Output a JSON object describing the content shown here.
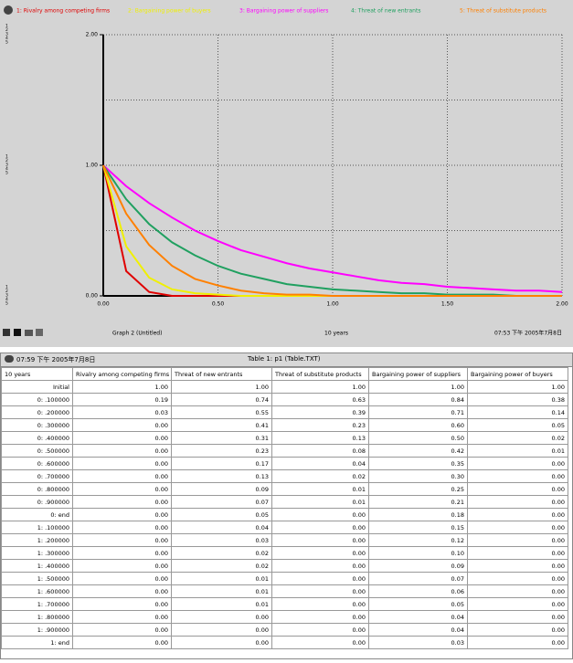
{
  "chart_data": {
    "type": "line",
    "legend": [
      "1: Rivalry among competing firms",
      "2: Bargaining power of buyers",
      "3: Bargaining power of suppliers",
      "4: Threat of new entrants",
      "5: Threat of substitute products"
    ],
    "axis_markers": [
      "1",
      "2",
      "3",
      "4",
      "5"
    ],
    "x": [
      0,
      0.1,
      0.2,
      0.3,
      0.4,
      0.5,
      0.6,
      0.7,
      0.8,
      0.9,
      1.0,
      1.1,
      1.2,
      1.3,
      1.4,
      1.5,
      1.6,
      1.7,
      1.8,
      1.9,
      2.0
    ],
    "series": [
      {
        "name": "1: Rivalry among competing firms",
        "color": "#e00000",
        "values": [
          1.0,
          0.19,
          0.03,
          0,
          0,
          0,
          0,
          0,
          0,
          0,
          0,
          0,
          0,
          0,
          0,
          0,
          0,
          0,
          0,
          0,
          0
        ]
      },
      {
        "name": "2: Bargaining power of buyers",
        "color": "#f0f000",
        "values": [
          1.0,
          0.38,
          0.14,
          0.05,
          0.02,
          0.01,
          0,
          0,
          0,
          0,
          0,
          0,
          0,
          0,
          0,
          0,
          0,
          0,
          0,
          0,
          0
        ]
      },
      {
        "name": "3: Bargaining power of suppliers",
        "color": "#ff00ff",
        "values": [
          1.0,
          0.84,
          0.71,
          0.6,
          0.5,
          0.42,
          0.35,
          0.3,
          0.25,
          0.21,
          0.18,
          0.15,
          0.12,
          0.1,
          0.09,
          0.07,
          0.06,
          0.05,
          0.04,
          0.04,
          0.03
        ]
      },
      {
        "name": "4: Threat of new entrants",
        "color": "#20a060",
        "values": [
          1.0,
          0.74,
          0.55,
          0.41,
          0.31,
          0.23,
          0.17,
          0.13,
          0.09,
          0.07,
          0.05,
          0.04,
          0.03,
          0.02,
          0.02,
          0.01,
          0.01,
          0.01,
          0,
          0,
          0
        ]
      },
      {
        "name": "5: Threat of substitute products",
        "color": "#ff8000",
        "values": [
          1.0,
          0.63,
          0.39,
          0.23,
          0.13,
          0.08,
          0.04,
          0.02,
          0.01,
          0.01,
          0,
          0,
          0,
          0,
          0,
          0,
          0,
          0,
          0,
          0,
          0
        ]
      }
    ],
    "xlim": [
      0,
      2
    ],
    "ylim": [
      0,
      2
    ],
    "xticks": [
      {
        "value": 0,
        "label": "0.00"
      },
      {
        "value": 0.5,
        "label": "0.50"
      },
      {
        "value": 1,
        "label": "1.00"
      },
      {
        "value": 1.5,
        "label": "1.50"
      },
      {
        "value": 2,
        "label": "2.00"
      }
    ],
    "yticks": [
      {
        "value": 0,
        "label": "0.00"
      },
      {
        "value": 1,
        "label": "1.00"
      },
      {
        "value": 2,
        "label": "2.00"
      }
    ],
    "ygrid": [
      0.5,
      1,
      1.5
    ],
    "graph_name": "Graph 2 (Untitled)",
    "xlabel": "10  years",
    "timestamp": "07:53 下午   2005年7月8日"
  },
  "table": {
    "timestamp": "07:59 下午   2005年7月8日",
    "title": "Table 1: p1 (Table.TXT)",
    "columns": [
      "10  years",
      "Rivalry among competing firms",
      "Threat of new entrants",
      "Threat of substitute products",
      "Bargaining power of suppliers",
      "Bargaining power of buyers"
    ],
    "rows": [
      [
        "Initial",
        "1.00",
        "1.00",
        "1.00",
        "1.00",
        "1.00"
      ],
      [
        "0: .100000",
        "0.19",
        "0.74",
        "0.63",
        "0.84",
        "0.38"
      ],
      [
        "0: .200000",
        "0.03",
        "0.55",
        "0.39",
        "0.71",
        "0.14"
      ],
      [
        "0: .300000",
        "0.00",
        "0.41",
        "0.23",
        "0.60",
        "0.05"
      ],
      [
        "0: .400000",
        "0.00",
        "0.31",
        "0.13",
        "0.50",
        "0.02"
      ],
      [
        "0: .500000",
        "0.00",
        "0.23",
        "0.08",
        "0.42",
        "0.01"
      ],
      [
        "0: .600000",
        "0.00",
        "0.17",
        "0.04",
        "0.35",
        "0.00"
      ],
      [
        "0: .700000",
        "0.00",
        "0.13",
        "0.02",
        "0.30",
        "0.00"
      ],
      [
        "0: .800000",
        "0.00",
        "0.09",
        "0.01",
        "0.25",
        "0.00"
      ],
      [
        "0: .900000",
        "0.00",
        "0.07",
        "0.01",
        "0.21",
        "0.00"
      ],
      [
        "0: end",
        "0.00",
        "0.05",
        "0.00",
        "0.18",
        "0.00"
      ],
      [
        "1: .100000",
        "0.00",
        "0.04",
        "0.00",
        "0.15",
        "0.00"
      ],
      [
        "1: .200000",
        "0.00",
        "0.03",
        "0.00",
        "0.12",
        "0.00"
      ],
      [
        "1: .300000",
        "0.00",
        "0.02",
        "0.00",
        "0.10",
        "0.00"
      ],
      [
        "1: .400000",
        "0.00",
        "0.02",
        "0.00",
        "0.09",
        "0.00"
      ],
      [
        "1: .500000",
        "0.00",
        "0.01",
        "0.00",
        "0.07",
        "0.00"
      ],
      [
        "1: .600000",
        "0.00",
        "0.01",
        "0.00",
        "0.06",
        "0.00"
      ],
      [
        "1: .700000",
        "0.00",
        "0.01",
        "0.00",
        "0.05",
        "0.00"
      ],
      [
        "1: .800000",
        "0.00",
        "0.00",
        "0.00",
        "0.04",
        "0.00"
      ],
      [
        "1: .900000",
        "0.00",
        "0.00",
        "0.00",
        "0.04",
        "0.00"
      ],
      [
        "1: end",
        "0.00",
        "0.00",
        "0.00",
        "0.03",
        "0.00"
      ]
    ]
  }
}
